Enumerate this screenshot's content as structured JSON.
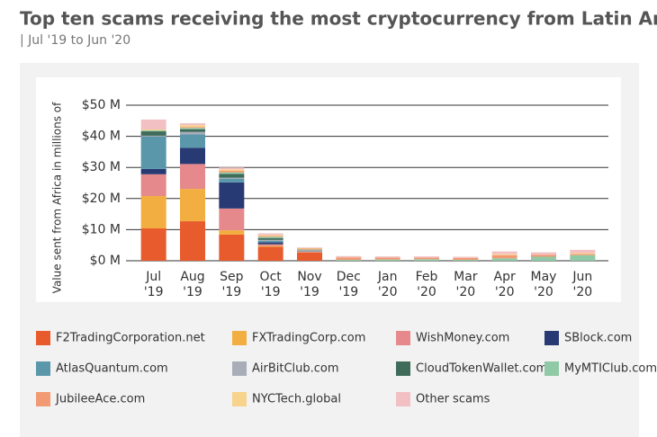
{
  "chart_data": {
    "type": "bar",
    "stacked": true,
    "title": "Top ten scams receiving the most cryptocurrency from Latin America",
    "subtitle": "| Jul '19 to Jun '20",
    "y_label": "Value sent from Africa in millions of",
    "categories": [
      "Jul\n'19",
      "Aug\n'19",
      "Sep\n'19",
      "Oct\n'19",
      "Nov\n'19",
      "Dec\n'19",
      "Jan\n'20",
      "Feb\n'20",
      "Mar\n'20",
      "Apr\n'20",
      "May\n'20",
      "Jun\n'20"
    ],
    "ylim": [
      0,
      50
    ],
    "yticks": [
      {
        "value": 0,
        "label": "$0 M"
      },
      {
        "value": 10,
        "label": "$10 M"
      },
      {
        "value": 20,
        "label": "$20 M"
      },
      {
        "value": 30,
        "label": "$30 M"
      },
      {
        "value": 40,
        "label": "$40 M"
      },
      {
        "value": 50,
        "label": "$50 M"
      }
    ],
    "grid": true,
    "series": [
      {
        "name": "F2TradingCorporation.net",
        "color": "#e85b2c",
        "values": [
          10.4,
          12.7,
          8.4,
          4.5,
          2.6,
          0,
          0,
          0,
          0,
          0,
          0,
          0
        ]
      },
      {
        "name": "FXTradingCorp.com",
        "color": "#f2ae40",
        "values": [
          10.4,
          10.4,
          1.4,
          0.3,
          0.1,
          0,
          0,
          0,
          0,
          0,
          0,
          0
        ]
      },
      {
        "name": "WishMoney.com",
        "color": "#e6898d",
        "values": [
          7,
          8,
          7,
          0.5,
          0.3,
          0,
          0,
          0,
          0,
          0,
          0,
          0
        ]
      },
      {
        "name": "SBlock.com",
        "color": "#283a73",
        "values": [
          1.7,
          5.2,
          8.4,
          0.6,
          0.1,
          0,
          0,
          0,
          0,
          0,
          0,
          0
        ]
      },
      {
        "name": "AtlasQuantum.com",
        "color": "#5a97ab",
        "values": [
          10.4,
          4.3,
          1.2,
          0.5,
          0.1,
          0,
          0,
          0,
          0,
          0,
          0,
          0
        ]
      },
      {
        "name": "AirBitClub.com",
        "color": "#a9adb8",
        "values": [
          0.3,
          0.8,
          0.3,
          0.3,
          0.1,
          0,
          0,
          0,
          0,
          0,
          0,
          0
        ]
      },
      {
        "name": "CloudTokenWallet.com",
        "color": "#3f6b5b",
        "values": [
          1.4,
          0.9,
          1.2,
          0.6,
          0.1,
          0,
          0,
          0,
          0,
          0,
          0,
          0
        ]
      },
      {
        "name": "MyMTIClub.com",
        "color": "#8fc9a5",
        "values": [
          0.3,
          0.4,
          0.5,
          0.4,
          0.2,
          0.3,
          0.4,
          0.5,
          0.3,
          0.8,
          1.3,
          1.8
        ]
      },
      {
        "name": "JubileeAce.com",
        "color": "#f29a73",
        "values": [
          0,
          0.3,
          0.5,
          0.3,
          0.3,
          0.8,
          0.6,
          0.5,
          0.6,
          1.0,
          0.6,
          0.4
        ]
      },
      {
        "name": "NYCTech.global",
        "color": "#f8d38c",
        "values": [
          0.3,
          0.6,
          0.5,
          0.3,
          0.2,
          0,
          0,
          0,
          0,
          0.3,
          0,
          0.3
        ]
      },
      {
        "name": "Other scams",
        "color": "#f2c0c2",
        "values": [
          3.2,
          0.6,
          0.6,
          0.5,
          0.2,
          0.4,
          0.4,
          0.4,
          0.4,
          0.9,
          0.8,
          1.0
        ]
      }
    ]
  }
}
